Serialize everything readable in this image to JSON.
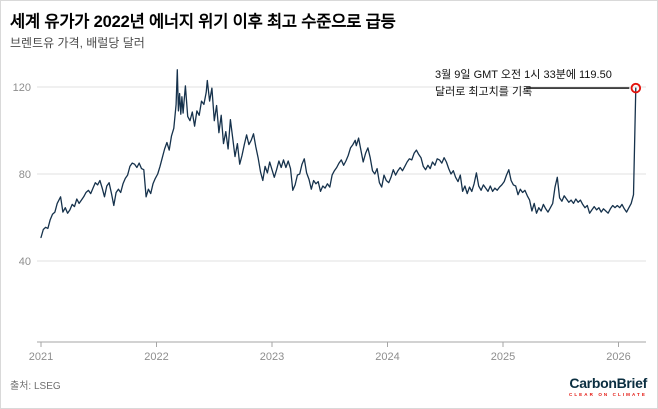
{
  "header": {
    "title": "세계 유가가 2022년 에너지 위기 이후 최고 수준으로 급등",
    "subtitle": "브렌트유 가격, 배럴당 달러"
  },
  "annotation": {
    "line1": "3월 9일 GMT 오전 1시 33분에 119.50",
    "line2": "달러로 최고치를 기록",
    "value": 119.5,
    "connector_from_year": 2025.2
  },
  "footer": {
    "source": "출처: LSEG",
    "brand": "CarbonBrief",
    "brand_tagline": "CLEAR ON CLIMATE"
  },
  "colors": {
    "line": "#16324c",
    "marker_ring": "#e3120b",
    "grid": "#e2e2e2",
    "axis": "#a6a6a6",
    "tick_label": "#8e8e8e",
    "connector": "#000000"
  },
  "chart_data": {
    "type": "line",
    "title": "세계 유가가 2022년 에너지 위기 이후 최고 수준으로 급등",
    "subtitle": "브렌트유 가격, 배럴당 달러",
    "series_name": "브렌트유 가격 (배럴당 달러)",
    "xlabel": "",
    "ylabel": "배럴당 달러",
    "x_ticks": [
      2021,
      2022,
      2023,
      2024,
      2025,
      2026
    ],
    "y_ticks": [
      40,
      80,
      120
    ],
    "ylim": [
      0,
      133
    ],
    "xlim": [
      2021.0,
      2026.35
    ],
    "grid": "horizontal",
    "legend": "none",
    "points": [
      [
        2021.0,
        50.8
      ],
      [
        2021.02,
        54.5
      ],
      [
        2021.04,
        55.5
      ],
      [
        2021.06,
        55.0
      ],
      [
        2021.08,
        59.0
      ],
      [
        2021.1,
        61.5
      ],
      [
        2021.12,
        62.5
      ],
      [
        2021.14,
        66.5
      ],
      [
        2021.17,
        69.5
      ],
      [
        2021.19,
        62.5
      ],
      [
        2021.21,
        64.5
      ],
      [
        2021.23,
        62.0
      ],
      [
        2021.25,
        63.5
      ],
      [
        2021.27,
        66.0
      ],
      [
        2021.29,
        65.0
      ],
      [
        2021.31,
        68.5
      ],
      [
        2021.33,
        66.5
      ],
      [
        2021.35,
        68.0
      ],
      [
        2021.37,
        69.5
      ],
      [
        2021.39,
        71.5
      ],
      [
        2021.41,
        72.5
      ],
      [
        2021.43,
        71.0
      ],
      [
        2021.45,
        73.5
      ],
      [
        2021.47,
        76.0
      ],
      [
        2021.49,
        75.0
      ],
      [
        2021.51,
        77.0
      ],
      [
        2021.53,
        73.5
      ],
      [
        2021.55,
        69.5
      ],
      [
        2021.57,
        74.5
      ],
      [
        2021.59,
        76.0
      ],
      [
        2021.61,
        71.0
      ],
      [
        2021.63,
        65.5
      ],
      [
        2021.65,
        71.5
      ],
      [
        2021.67,
        73.0
      ],
      [
        2021.69,
        71.5
      ],
      [
        2021.71,
        75.5
      ],
      [
        2021.73,
        78.0
      ],
      [
        2021.75,
        79.5
      ],
      [
        2021.77,
        83.5
      ],
      [
        2021.79,
        85.0
      ],
      [
        2021.81,
        84.5
      ],
      [
        2021.83,
        83.0
      ],
      [
        2021.85,
        85.0
      ],
      [
        2021.87,
        82.5
      ],
      [
        2021.89,
        82.0
      ],
      [
        2021.91,
        69.5
      ],
      [
        2021.93,
        73.0
      ],
      [
        2021.95,
        71.0
      ],
      [
        2021.97,
        75.5
      ],
      [
        2021.99,
        78.0
      ],
      [
        2022.01,
        80.0
      ],
      [
        2022.03,
        83.5
      ],
      [
        2022.05,
        87.5
      ],
      [
        2022.07,
        91.5
      ],
      [
        2022.09,
        94.5
      ],
      [
        2022.11,
        91.0
      ],
      [
        2022.13,
        97.5
      ],
      [
        2022.15,
        101.0
      ],
      [
        2022.17,
        112.0
      ],
      [
        2022.18,
        127.9
      ],
      [
        2022.19,
        109.0
      ],
      [
        2022.2,
        117.0
      ],
      [
        2022.21,
        107.5
      ],
      [
        2022.22,
        115.5
      ],
      [
        2022.23,
        108.0
      ],
      [
        2022.25,
        120.5
      ],
      [
        2022.27,
        106.5
      ],
      [
        2022.29,
        104.5
      ],
      [
        2022.31,
        108.5
      ],
      [
        2022.33,
        102.0
      ],
      [
        2022.35,
        109.0
      ],
      [
        2022.37,
        107.0
      ],
      [
        2022.39,
        113.5
      ],
      [
        2022.41,
        112.0
      ],
      [
        2022.43,
        117.5
      ],
      [
        2022.44,
        123.0
      ],
      [
        2022.46,
        113.5
      ],
      [
        2022.48,
        119.5
      ],
      [
        2022.5,
        104.5
      ],
      [
        2022.52,
        111.5
      ],
      [
        2022.54,
        99.0
      ],
      [
        2022.56,
        107.0
      ],
      [
        2022.58,
        94.0
      ],
      [
        2022.6,
        99.5
      ],
      [
        2022.62,
        91.5
      ],
      [
        2022.64,
        105.0
      ],
      [
        2022.66,
        96.5
      ],
      [
        2022.68,
        88.0
      ],
      [
        2022.7,
        94.0
      ],
      [
        2022.72,
        84.5
      ],
      [
        2022.74,
        88.5
      ],
      [
        2022.76,
        93.5
      ],
      [
        2022.78,
        98.0
      ],
      [
        2022.8,
        93.5
      ],
      [
        2022.82,
        95.5
      ],
      [
        2022.84,
        98.5
      ],
      [
        2022.86,
        92.5
      ],
      [
        2022.88,
        87.5
      ],
      [
        2022.9,
        81.0
      ],
      [
        2022.92,
        77.0
      ],
      [
        2022.94,
        83.5
      ],
      [
        2022.96,
        80.5
      ],
      [
        2022.98,
        85.5
      ],
      [
        2023.0,
        82.0
      ],
      [
        2023.02,
        78.5
      ],
      [
        2023.04,
        82.0
      ],
      [
        2023.06,
        86.0
      ],
      [
        2023.08,
        83.0
      ],
      [
        2023.1,
        86.5
      ],
      [
        2023.12,
        83.0
      ],
      [
        2023.14,
        86.0
      ],
      [
        2023.16,
        82.5
      ],
      [
        2023.18,
        72.5
      ],
      [
        2023.2,
        75.0
      ],
      [
        2023.22,
        79.5
      ],
      [
        2023.24,
        80.0
      ],
      [
        2023.26,
        84.5
      ],
      [
        2023.28,
        87.0
      ],
      [
        2023.3,
        80.5
      ],
      [
        2023.32,
        77.5
      ],
      [
        2023.34,
        73.0
      ],
      [
        2023.36,
        77.0
      ],
      [
        2023.38,
        75.5
      ],
      [
        2023.4,
        76.5
      ],
      [
        2023.42,
        72.0
      ],
      [
        2023.44,
        74.5
      ],
      [
        2023.46,
        73.5
      ],
      [
        2023.48,
        75.5
      ],
      [
        2023.5,
        74.0
      ],
      [
        2023.52,
        79.5
      ],
      [
        2023.54,
        81.5
      ],
      [
        2023.56,
        83.0
      ],
      [
        2023.58,
        85.0
      ],
      [
        2023.6,
        86.5
      ],
      [
        2023.62,
        84.0
      ],
      [
        2023.64,
        86.0
      ],
      [
        2023.66,
        88.5
      ],
      [
        2023.68,
        92.0
      ],
      [
        2023.7,
        93.5
      ],
      [
        2023.72,
        95.5
      ],
      [
        2023.73,
        93.0
      ],
      [
        2023.75,
        96.5
      ],
      [
        2023.77,
        91.0
      ],
      [
        2023.79,
        85.5
      ],
      [
        2023.81,
        89.5
      ],
      [
        2023.83,
        92.0
      ],
      [
        2023.85,
        87.5
      ],
      [
        2023.87,
        81.5
      ],
      [
        2023.89,
        80.0
      ],
      [
        2023.91,
        82.5
      ],
      [
        2023.93,
        76.0
      ],
      [
        2023.95,
        74.0
      ],
      [
        2023.97,
        79.5
      ],
      [
        2023.99,
        77.0
      ],
      [
        2024.01,
        76.0
      ],
      [
        2024.03,
        78.5
      ],
      [
        2024.05,
        82.0
      ],
      [
        2024.07,
        79.5
      ],
      [
        2024.09,
        81.5
      ],
      [
        2024.11,
        83.0
      ],
      [
        2024.13,
        81.5
      ],
      [
        2024.15,
        83.5
      ],
      [
        2024.17,
        85.5
      ],
      [
        2024.19,
        87.0
      ],
      [
        2024.21,
        86.5
      ],
      [
        2024.23,
        89.5
      ],
      [
        2024.25,
        91.0
      ],
      [
        2024.27,
        89.0
      ],
      [
        2024.29,
        87.5
      ],
      [
        2024.31,
        83.5
      ],
      [
        2024.33,
        82.0
      ],
      [
        2024.35,
        84.0
      ],
      [
        2024.37,
        82.5
      ],
      [
        2024.39,
        85.5
      ],
      [
        2024.41,
        84.0
      ],
      [
        2024.43,
        87.0
      ],
      [
        2024.45,
        86.5
      ],
      [
        2024.47,
        85.0
      ],
      [
        2024.49,
        87.5
      ],
      [
        2024.51,
        85.5
      ],
      [
        2024.53,
        82.5
      ],
      [
        2024.55,
        80.0
      ],
      [
        2024.57,
        81.5
      ],
      [
        2024.59,
        78.5
      ],
      [
        2024.61,
        76.5
      ],
      [
        2024.63,
        79.5
      ],
      [
        2024.65,
        72.0
      ],
      [
        2024.67,
        74.5
      ],
      [
        2024.69,
        71.0
      ],
      [
        2024.71,
        74.0
      ],
      [
        2024.73,
        72.0
      ],
      [
        2024.75,
        75.5
      ],
      [
        2024.77,
        80.5
      ],
      [
        2024.79,
        74.5
      ],
      [
        2024.81,
        72.5
      ],
      [
        2024.83,
        75.0
      ],
      [
        2024.85,
        73.5
      ],
      [
        2024.87,
        72.0
      ],
      [
        2024.89,
        74.5
      ],
      [
        2024.91,
        72.0
      ],
      [
        2024.93,
        73.5
      ],
      [
        2024.95,
        72.5
      ],
      [
        2024.97,
        74.0
      ],
      [
        2024.99,
        75.0
      ],
      [
        2025.01,
        76.5
      ],
      [
        2025.03,
        79.5
      ],
      [
        2025.05,
        82.0
      ],
      [
        2025.07,
        77.0
      ],
      [
        2025.09,
        75.0
      ],
      [
        2025.11,
        74.5
      ],
      [
        2025.13,
        70.5
      ],
      [
        2025.15,
        73.0
      ],
      [
        2025.17,
        71.5
      ],
      [
        2025.19,
        72.5
      ],
      [
        2025.21,
        70.0
      ],
      [
        2025.23,
        68.0
      ],
      [
        2025.25,
        63.0
      ],
      [
        2025.27,
        66.5
      ],
      [
        2025.29,
        62.0
      ],
      [
        2025.31,
        64.5
      ],
      [
        2025.33,
        63.0
      ],
      [
        2025.35,
        66.0
      ],
      [
        2025.37,
        64.0
      ],
      [
        2025.39,
        62.5
      ],
      [
        2025.41,
        64.5
      ],
      [
        2025.43,
        66.5
      ],
      [
        2025.45,
        74.0
      ],
      [
        2025.47,
        78.5
      ],
      [
        2025.49,
        69.0
      ],
      [
        2025.51,
        67.5
      ],
      [
        2025.53,
        70.0
      ],
      [
        2025.55,
        68.5
      ],
      [
        2025.57,
        67.0
      ],
      [
        2025.59,
        68.0
      ],
      [
        2025.61,
        66.5
      ],
      [
        2025.63,
        68.5
      ],
      [
        2025.65,
        67.0
      ],
      [
        2025.67,
        68.0
      ],
      [
        2025.69,
        66.0
      ],
      [
        2025.71,
        64.5
      ],
      [
        2025.73,
        65.5
      ],
      [
        2025.75,
        62.0
      ],
      [
        2025.77,
        63.5
      ],
      [
        2025.79,
        65.0
      ],
      [
        2025.81,
        63.5
      ],
      [
        2025.83,
        64.5
      ],
      [
        2025.85,
        62.5
      ],
      [
        2025.87,
        64.0
      ],
      [
        2025.89,
        63.0
      ],
      [
        2025.91,
        62.0
      ],
      [
        2025.93,
        64.0
      ],
      [
        2025.95,
        65.5
      ],
      [
        2025.97,
        64.5
      ],
      [
        2025.99,
        65.5
      ],
      [
        2026.01,
        64.5
      ],
      [
        2026.03,
        66.0
      ],
      [
        2026.05,
        64.0
      ],
      [
        2026.07,
        62.5
      ],
      [
        2026.09,
        64.5
      ],
      [
        2026.11,
        66.5
      ],
      [
        2026.13,
        70.5
      ],
      [
        2026.15,
        119.5
      ]
    ],
    "annotations": [
      {
        "text": "3월 9일 GMT 오전 1시 33분에 119.50 달러로 최고치를 기록",
        "x": 2026.15,
        "y": 119.5
      }
    ]
  }
}
